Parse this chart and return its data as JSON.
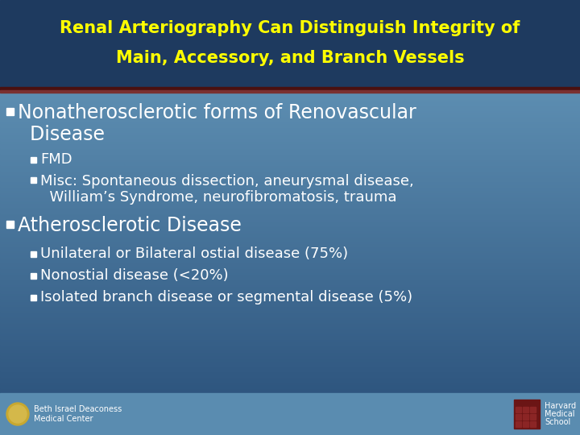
{
  "title_line1": "Renal Arteriography Can Distinguish Integrity of",
  "title_line2": "Main, Accessory, and Branch Vessels",
  "title_color": "#FFFF00",
  "title_bg_color": "#1e3a5f",
  "title_font_size": 15,
  "separator_color": "#4a1010",
  "separator2_color": "#7a3030",
  "body_bg_top_color": "#2d5580",
  "body_bg_bottom_color": "#6a9ec0",
  "bullet1_line1": "Nonatherosclerotic forms of Renovascular",
  "bullet1_line2": "  Disease",
  "bullet1_size": 17,
  "sub1a": "FMD",
  "sub1b_line1": "Misc: Spontaneous dissection, aneurysmal disease,",
  "sub1b_line2": "  William’s Syndrome, neurofibromatosis, trauma",
  "sub_size": 13,
  "bullet2": "Atherosclerotic Disease",
  "bullet2_size": 17,
  "sub2a": "Unilateral or Bilateral ostial disease (75%)",
  "sub2b": "Nonostial disease (<20%)",
  "sub2c": "Isolated branch disease or segmental disease (5%)",
  "sub2_size": 13,
  "white": "#FFFFFF",
  "yellow": "#FFFF00",
  "footer_left1": "Beth Israel Deaconess",
  "footer_left2": "Medical Center",
  "footer_right1": "Harvard",
  "footer_right2": "Medical",
  "footer_right3": "School",
  "footer_size": 7,
  "figsize": [
    7.2,
    5.4
  ],
  "dpi": 100
}
